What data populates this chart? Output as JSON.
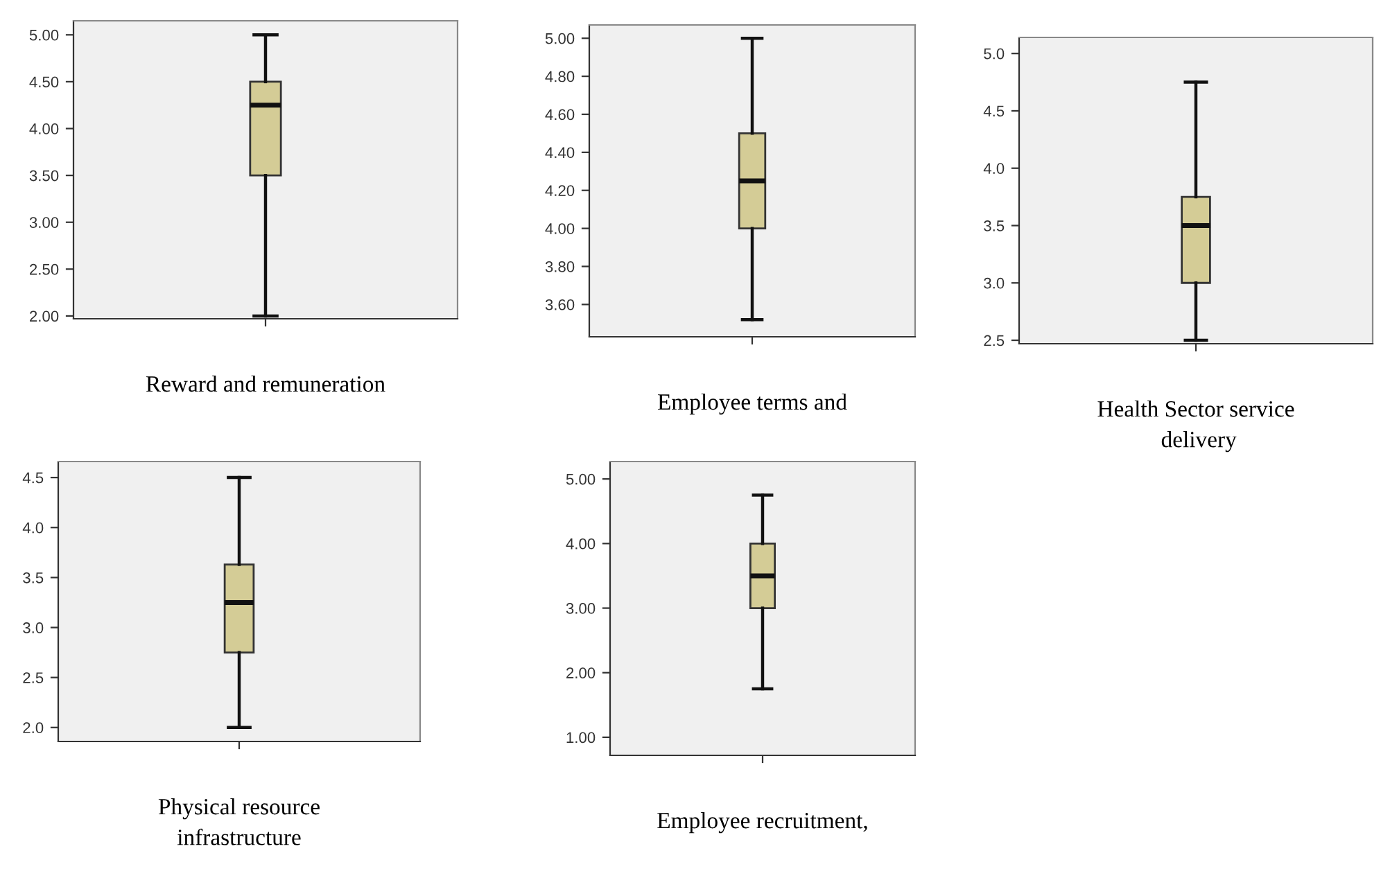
{
  "chart_data": [
    {
      "type": "box",
      "categories": [
        null
      ],
      "xlabel": "Reward and remuneration",
      "color": "#d4cc96",
      "boxes": [
        {
          "low": 2.0,
          "q1": 3.5,
          "median": 4.25,
          "q3": 4.5,
          "high": 5.0
        }
      ],
      "ylim": [
        1.97,
        5.15
      ],
      "yticks": [
        {
          "value": 2.0,
          "label": "2.00"
        },
        {
          "value": 2.5,
          "label": "2.50"
        },
        {
          "value": 3.0,
          "label": "3.00"
        },
        {
          "value": 3.5,
          "label": "3.50"
        },
        {
          "value": 4.0,
          "label": "4.00"
        },
        {
          "value": 4.5,
          "label": "4.50"
        },
        {
          "value": 5.0,
          "label": "5.00"
        }
      ]
    },
    {
      "type": "box",
      "categories": [
        null
      ],
      "xlabel": "Employee terms and",
      "color": "#d4cc96",
      "boxes": [
        {
          "low": 3.52,
          "q1": 4.0,
          "median": 4.25,
          "q3": 4.5,
          "high": 5.0
        }
      ],
      "ylim": [
        3.43,
        5.07
      ],
      "yticks": [
        {
          "value": 3.6,
          "label": "3.60"
        },
        {
          "value": 3.8,
          "label": "3.80"
        },
        {
          "value": 4.0,
          "label": "4.00"
        },
        {
          "value": 4.2,
          "label": "4.20"
        },
        {
          "value": 4.4,
          "label": "4.40"
        },
        {
          "value": 4.6,
          "label": "4.60"
        },
        {
          "value": 4.8,
          "label": "4.80"
        },
        {
          "value": 5.0,
          "label": "5.00"
        }
      ]
    },
    {
      "type": "box",
      "categories": [
        null
      ],
      "xlabel": "Health Sector service\n delivery",
      "color": "#d4cc96",
      "boxes": [
        {
          "low": 2.5,
          "q1": 3.0,
          "median": 3.5,
          "q3": 3.75,
          "high": 4.75
        }
      ],
      "ylim": [
        2.47,
        5.14
      ],
      "yticks": [
        {
          "value": 2.5,
          "label": "2.5"
        },
        {
          "value": 3.0,
          "label": "3.0"
        },
        {
          "value": 3.5,
          "label": "3.5"
        },
        {
          "value": 4.0,
          "label": "4.0"
        },
        {
          "value": 4.5,
          "label": "4.5"
        },
        {
          "value": 5.0,
          "label": "5.0"
        }
      ]
    },
    {
      "type": "box",
      "categories": [
        null
      ],
      "xlabel": "Physical resource\ninfrastructure",
      "color": "#d4cc96",
      "boxes": [
        {
          "low": 2.0,
          "q1": 2.75,
          "median": 3.25,
          "q3": 3.63,
          "high": 4.5
        }
      ],
      "ylim": [
        1.86,
        4.66
      ],
      "yticks": [
        {
          "value": 2.0,
          "label": "2.0"
        },
        {
          "value": 2.5,
          "label": "2.5"
        },
        {
          "value": 3.0,
          "label": "3.0"
        },
        {
          "value": 3.5,
          "label": "3.5"
        },
        {
          "value": 4.0,
          "label": "4.0"
        },
        {
          "value": 4.5,
          "label": "4.5"
        }
      ]
    },
    {
      "type": "box",
      "categories": [
        null
      ],
      "xlabel": "Employee recruitment,",
      "color": "#d4cc96",
      "boxes": [
        {
          "low": 1.75,
          "q1": 3.0,
          "median": 3.5,
          "q3": 4.0,
          "high": 4.75
        }
      ],
      "ylim": [
        0.72,
        5.27
      ],
      "yticks": [
        {
          "value": 1.0,
          "label": "1.00"
        },
        {
          "value": 2.0,
          "label": "2.00"
        },
        {
          "value": 3.0,
          "label": "3.00"
        },
        {
          "value": 4.0,
          "label": "4.00"
        },
        {
          "value": 5.0,
          "label": "5.00"
        }
      ]
    }
  ]
}
